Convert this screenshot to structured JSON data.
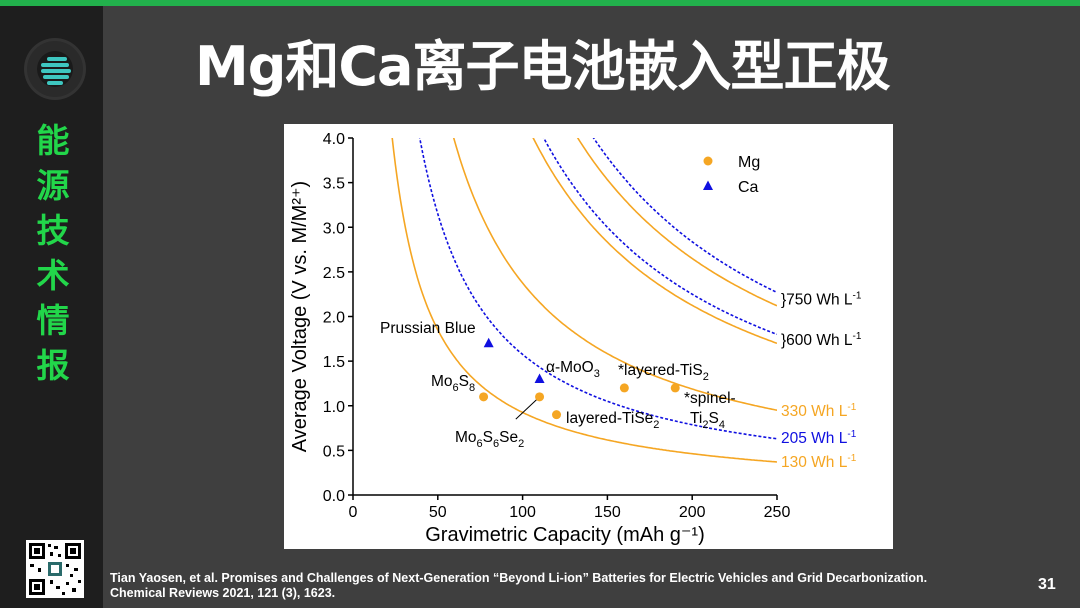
{
  "slide": {
    "title": "Mg和Ca离子电池嵌入型正极",
    "sidebar_text": [
      "能",
      "源",
      "技",
      "术",
      "情",
      "报"
    ],
    "citation_line1": "Tian Yaosen, et al. Promises and Challenges of Next-Generation “Beyond Li-ion” Batteries for Electric Vehicles and Grid Decarbonization.",
    "citation_line2": "Chemical Reviews 2021, 121 (3), 1623.",
    "page_number": "31",
    "colors": {
      "accent": "#22b14c",
      "background": "#3f3f3f",
      "sidebar": "#1e1e1e",
      "title": "#ffffff"
    },
    "icons": [
      "logo-icon",
      "qr-code-icon"
    ]
  },
  "chart_data": {
    "type": "scatter",
    "xlabel": "Gravimetric Capacity (mAh g⁻¹)",
    "ylabel": "Average Voltage (V vs. M/M²⁺)",
    "xlim": [
      0,
      250
    ],
    "ylim": [
      0,
      4.0
    ],
    "x_ticks": [
      "0",
      "50",
      "100",
      "150",
      "200",
      "250"
    ],
    "y_ticks": [
      "0.0",
      "0.5",
      "1.0",
      "1.5",
      "2.0",
      "2.5",
      "3.0",
      "3.5",
      "4.0"
    ],
    "legend": {
      "position": "top-right",
      "entries": [
        {
          "label": "Mg",
          "color": "#f5a623",
          "marker": "circle"
        },
        {
          "label": "Ca",
          "color": "#1010e0",
          "marker": "triangle"
        }
      ]
    },
    "series": [
      {
        "name": "Mg",
        "color": "#f5a623",
        "marker": "circle",
        "points": [
          {
            "x": 77,
            "y": 1.1
          },
          {
            "x": 110,
            "y": 1.1
          },
          {
            "x": 120,
            "y": 0.9
          },
          {
            "x": 160,
            "y": 1.2
          },
          {
            "x": 190,
            "y": 1.2
          }
        ]
      },
      {
        "name": "Ca",
        "color": "#1010e0",
        "marker": "triangle",
        "points": [
          {
            "x": 80,
            "y": 1.7
          },
          {
            "x": 110,
            "y": 1.3
          }
        ]
      }
    ],
    "point_labels": [
      {
        "text": "Prussian Blue",
        "x": 80,
        "y": 1.7
      },
      {
        "text": "Mo6S8",
        "x": 77,
        "y": 1.1
      },
      {
        "text": "α-MoO3",
        "x": 110,
        "y": 1.3
      },
      {
        "text": "*layered-TiS2",
        "x": 160,
        "y": 1.2
      },
      {
        "text": "layered-TiSe2",
        "x": 120,
        "y": 0.9
      },
      {
        "text": "Mo6S6Se2",
        "x": 110,
        "y": 1.1
      },
      {
        "text": "*spinel-Ti2S4",
        "x": 190,
        "y": 1.2
      }
    ],
    "energy_density_curves": [
      {
        "label": "130 Wh L⁻¹",
        "color": "#f5a623",
        "style": "solid",
        "y_at_250": 0.37
      },
      {
        "label": "205 Wh L⁻¹",
        "color": "#1010e0",
        "style": "dashed",
        "y_at_250": 0.63
      },
      {
        "label": "330 Wh L⁻¹",
        "color": "#f5a623",
        "style": "solid",
        "y_at_250": 0.95
      },
      {
        "label": "600 Wh L⁻¹",
        "color": "#f5a623",
        "style": "solid",
        "y_at_250": 1.7
      },
      {
        "label": "600 Wh L⁻¹",
        "color": "#1010e0",
        "style": "dashed",
        "y_at_250": 1.8
      },
      {
        "label": "750 Wh L⁻¹",
        "color": "#f5a623",
        "style": "solid",
        "y_at_250": 2.12
      },
      {
        "label": "750 Wh L⁻¹",
        "color": "#1010e0",
        "style": "dashed",
        "y_at_250": 2.27
      }
    ],
    "curve_labels": [
      {
        "text": "}750 Wh L⁻¹",
        "y": 2.2,
        "color": "#000000"
      },
      {
        "text": "}600 Wh L⁻¹",
        "y": 1.75,
        "color": "#000000"
      },
      {
        "text": "330 Wh L⁻¹",
        "y": 0.95,
        "color": "#f5a623"
      },
      {
        "text": "205 Wh L⁻¹",
        "y": 0.65,
        "color": "#1010e0"
      },
      {
        "text": "130 Wh L⁻¹",
        "y": 0.38,
        "color": "#f5a623"
      }
    ]
  }
}
